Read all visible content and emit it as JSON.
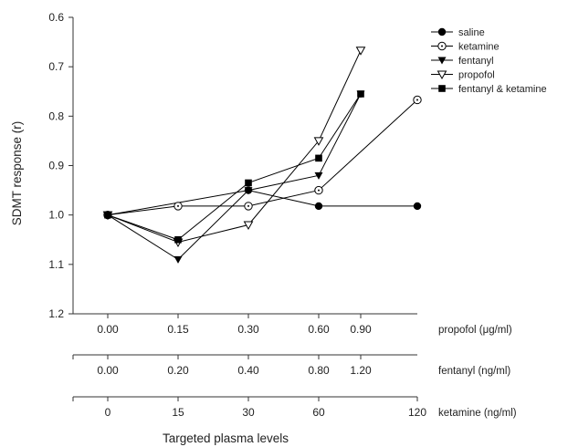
{
  "chart_data": {
    "type": "line",
    "ylabel": "SDMT response (r)",
    "xlabel": "Targeted plasma levels",
    "y_axis": {
      "range": [
        0.6,
        1.2
      ],
      "inverted": true,
      "ticks": [
        "0.6",
        "0.7",
        "0.8",
        "0.9",
        "1.0",
        "1.1",
        "1.2"
      ]
    },
    "x_axes": [
      {
        "label": "propofol (μg/ml)",
        "ticks": [
          "0.00",
          "0.15",
          "0.30",
          "0.60",
          "0.90"
        ]
      },
      {
        "label": "fentanyl (ng/ml)",
        "ticks": [
          "0.00",
          "0.20",
          "0.40",
          "0.80",
          "1.20"
        ]
      },
      {
        "label": "ketamine (ng/ml)",
        "ticks": [
          "0",
          "15",
          "30",
          "60",
          "120"
        ]
      }
    ],
    "x_index_positions": [
      0,
      1,
      2,
      3,
      3.6,
      4.4
    ],
    "legend": {
      "position": "top-right"
    },
    "grid": false,
    "series": [
      {
        "name": "saline",
        "marker": "circle-filled",
        "x": [
          0,
          2,
          3,
          4.4
        ],
        "y": [
          1.0,
          0.95,
          0.982,
          0.982
        ]
      },
      {
        "name": "ketamine",
        "marker": "circle-dot-open",
        "x": [
          0,
          1,
          2,
          3,
          4.4
        ],
        "y": [
          1.0,
          0.982,
          0.982,
          0.95,
          0.767
        ]
      },
      {
        "name": "fentanyl",
        "marker": "triangle-down-filled",
        "x": [
          0,
          1,
          2,
          3,
          3.6
        ],
        "y": [
          1.0,
          1.09,
          0.95,
          0.92,
          0.755
        ]
      },
      {
        "name": "propofol",
        "marker": "triangle-down-open",
        "x": [
          0,
          1,
          2,
          3,
          3.6
        ],
        "y": [
          1.0,
          1.055,
          1.02,
          0.85,
          0.667
        ]
      },
      {
        "name": "fentanyl & ketamine",
        "marker": "square-filled",
        "x": [
          0,
          1,
          2,
          3,
          3.6
        ],
        "y": [
          1.0,
          1.05,
          0.935,
          0.885,
          0.755
        ]
      }
    ]
  }
}
